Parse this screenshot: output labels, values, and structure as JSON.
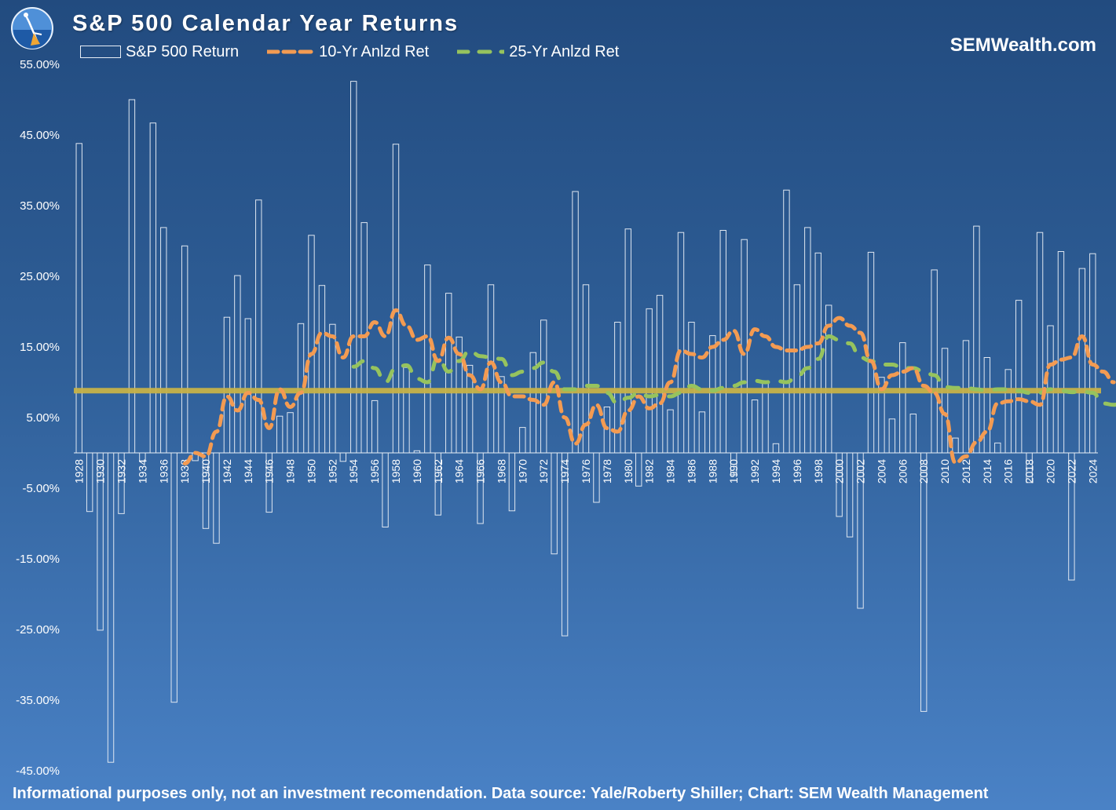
{
  "title": "S&P 500 Calendar Year Returns",
  "brand": "SEMWealth.com",
  "footer": "Informational purposes only, not an investment recomendation.  Data source: Yale/Roberty Shiller; Chart: SEM Wealth Management",
  "colors": {
    "bar_stroke": "#dfe7f1",
    "line_10yr": "#f39b52",
    "line_25yr": "#96c35e",
    "avg_line": "#c7b248",
    "axis_text": "#ffffff"
  },
  "chart_data": {
    "type": "bar",
    "title": "S&P 500 Calendar Year Returns",
    "xlabel": "",
    "ylabel": "",
    "ylim": [
      -45,
      55
    ],
    "y_ticks": [
      55,
      45,
      35,
      25,
      15,
      5,
      -5,
      -15,
      -25,
      -35,
      -45
    ],
    "y_tick_labels": [
      "55.00%",
      "45.00%",
      "35.00%",
      "25.00%",
      "15.00%",
      "5.00%",
      "-5.00%",
      "-15.00%",
      "-25.00%",
      "-35.00%",
      "-45.00%"
    ],
    "x_start_year": 1928,
    "x_end_year": 2024,
    "x_tick_labels": [
      "1928",
      "1930",
      "1932",
      "1934",
      "1936",
      "1938",
      "1940",
      "1942",
      "1944",
      "1946",
      "1948",
      "1950",
      "1952",
      "1954",
      "1956",
      "1958",
      "1960",
      "1962",
      "1964",
      "1966",
      "1968",
      "1970",
      "1972",
      "1974",
      "1976",
      "1978",
      "1980",
      "1982",
      "1984",
      "1986",
      "1988",
      "1990",
      "1992",
      "1994",
      "1996",
      "1998",
      "2000",
      "2002",
      "2004",
      "2006",
      "2008",
      "2010",
      "2012",
      "2014",
      "2016",
      "2018",
      "2020",
      "2022",
      "2024"
    ],
    "legend": [
      "S&P 500 Return",
      "10-Yr Anlzd Ret",
      "25-Yr Anlzd Ret"
    ],
    "reference_line": 8.8,
    "series": [
      {
        "name": "S&P 500 Return",
        "type": "bar",
        "values": [
          43.8,
          -8.3,
          -25.1,
          -43.8,
          -8.6,
          50.0,
          -1.2,
          46.7,
          31.9,
          -35.3,
          29.3,
          -1.1,
          -10.7,
          -12.8,
          19.2,
          25.1,
          19.0,
          35.8,
          -8.4,
          5.2,
          5.7,
          18.3,
          30.8,
          23.7,
          18.2,
          -1.2,
          52.6,
          32.6,
          7.4,
          -10.5,
          43.7,
          12.1,
          0.3,
          26.6,
          -8.8,
          22.6,
          16.4,
          12.4,
          -10.0,
          23.8,
          10.8,
          -8.2,
          3.6,
          14.2,
          18.8,
          -14.3,
          -25.9,
          37.0,
          23.8,
          -7.0,
          6.5,
          18.5,
          31.7,
          -4.7,
          20.4,
          22.3,
          6.1,
          31.2,
          18.5,
          5.8,
          16.6,
          31.5,
          -3.1,
          30.2,
          7.5,
          10.0,
          1.3,
          37.2,
          23.8,
          31.9,
          28.3,
          20.9,
          -9.0,
          -11.9,
          -22.0,
          28.4,
          10.7,
          4.8,
          15.6,
          5.5,
          -36.6,
          25.9,
          14.8,
          2.1,
          15.9,
          32.1,
          13.5,
          1.4,
          11.8,
          21.6,
          -4.2,
          31.2,
          18.0,
          28.5,
          -18.0,
          26.1,
          28.2
        ]
      },
      {
        "name": "10-Yr Anlzd Ret",
        "type": "line",
        "start_year": 1938,
        "values": [
          -1.5,
          0.0,
          -0.5,
          3.0,
          8.0,
          6.0,
          8.5,
          7.5,
          3.5,
          9.0,
          6.5,
          8.5,
          14.0,
          17.0,
          16.5,
          13.5,
          16.5,
          16.5,
          18.5,
          16.5,
          20.2,
          18.0,
          16.0,
          16.5,
          13.0,
          16.3,
          14.0,
          11.0,
          9.0,
          12.8,
          10.0,
          8.0,
          8.0,
          7.5,
          6.8,
          10.0,
          5.0,
          1.3,
          4.0,
          6.8,
          3.5,
          3.0,
          6.0,
          8.0,
          6.3,
          7.0,
          10.0,
          14.5,
          14.0,
          13.5,
          15.0,
          16.0,
          17.3,
          14.0,
          17.5,
          16.5,
          15.0,
          14.5,
          14.5,
          15.0,
          15.5,
          18.0,
          19.1,
          18.0,
          17.0,
          13.0,
          9.0,
          11.0,
          11.5,
          12.0,
          9.5,
          8.5,
          5.5,
          -1.4,
          -0.5,
          1.5,
          3.0,
          7.0,
          7.3,
          7.6,
          7.3,
          6.8,
          12.5,
          13.2,
          13.5,
          16.5,
          12.5,
          11.5,
          10.0
        ]
      },
      {
        "name": "25-Yr Anlzd Ret",
        "type": "line",
        "start_year": 1954,
        "values": [
          12.2,
          13.0,
          12.0,
          10.0,
          12.0,
          12.4,
          10.5,
          10.0,
          13.5,
          11.5,
          13.0,
          14.5,
          13.7,
          13.5,
          13.3,
          11.0,
          11.5,
          12.0,
          12.8,
          11.5,
          9.0,
          9.0,
          9.5,
          9.5,
          8.5,
          7.0,
          7.8,
          8.5,
          8.0,
          8.2,
          8.0,
          8.5,
          9.5,
          9.0,
          8.8,
          9.2,
          9.5,
          10.0,
          10.2,
          10.0,
          10.2,
          10.0,
          10.8,
          12.0,
          13.3,
          16.5,
          16.0,
          15.5,
          13.5,
          13.0,
          12.5,
          12.5,
          12.0,
          12.0,
          11.5,
          11.0,
          9.3,
          9.2,
          9.2,
          9.0,
          8.8,
          9.0,
          9.0,
          8.8,
          8.5,
          8.5,
          9.0,
          8.8,
          8.6,
          8.7,
          8.5,
          7.0,
          6.8,
          7.3
        ]
      }
    ]
  }
}
